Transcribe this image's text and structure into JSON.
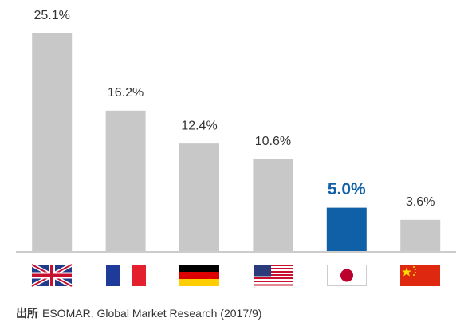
{
  "chart_data": {
    "type": "bar",
    "categories": [
      null,
      null,
      null,
      null,
      null,
      null
    ],
    "values": [
      25.1,
      16.2,
      12.4,
      10.6,
      5.0,
      3.6
    ],
    "value_labels": [
      "25.1%",
      "16.2%",
      "12.4%",
      "10.6%",
      "5.0%",
      "3.6%"
    ],
    "colors": [
      "#c8c8c8",
      "#c8c8c8",
      "#c8c8c8",
      "#c8c8c8",
      "#1060a8",
      "#c8c8c8"
    ],
    "source_label": "出所",
    "source": "ESOMAR, Global Market Research (2017/9)"
  }
}
